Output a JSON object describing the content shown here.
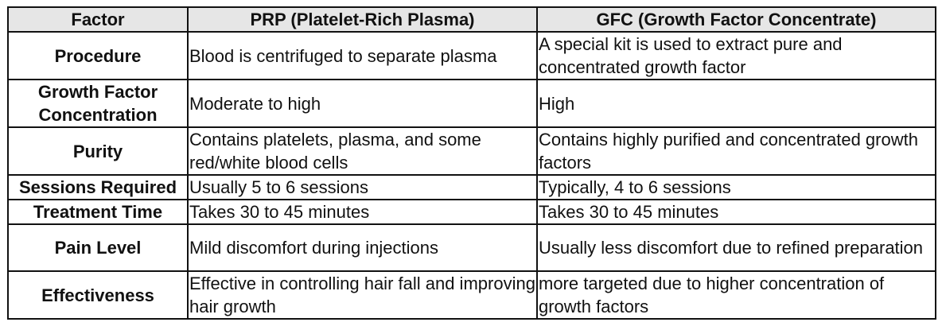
{
  "table": {
    "header": [
      "Factor",
      "PRP (Platelet-Rich Plasma)",
      "GFC (Growth Factor Concentrate)"
    ],
    "rows": [
      [
        "Procedure",
        "Blood is centrifuged to separate plasma",
        "A special kit is used to extract pure and concentrated growth factor"
      ],
      [
        "Growth Factor Concentration",
        "Moderate to high",
        "High"
      ],
      [
        "Purity",
        "Contains platelets, plasma, and some red/white blood cells",
        "Contains highly purified and concentrated growth factors"
      ],
      [
        "Sessions Required",
        "Usually 5 to 6 sessions",
        "Typically, 4 to 6 sessions"
      ],
      [
        "Treatment Time",
        "Takes 30 to 45 minutes",
        "Takes 30 to 45 minutes"
      ],
      [
        "Pain Level",
        "Mild discomfort during injections",
        "Usually less discomfort due to refined preparation"
      ],
      [
        "Effectiveness",
        "Effective in controlling hair fall and improving hair growth",
        "more targeted due to higher concentration of growth factors"
      ]
    ]
  }
}
